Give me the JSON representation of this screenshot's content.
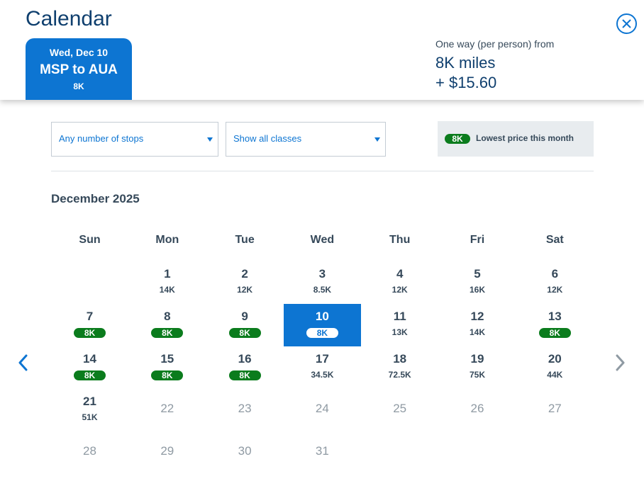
{
  "header": {
    "title": "Calendar",
    "close_icon": "close-circle-icon",
    "selected_tab": {
      "date": "Wed, Dec 10",
      "route": "MSP to AUA",
      "price": "8K"
    },
    "fare": {
      "label": "One way (per person) from",
      "miles": "8K miles",
      "cash": "+ $15.60"
    }
  },
  "filters": {
    "stops": {
      "value": "Any number of stops"
    },
    "classes": {
      "value": "Show all classes"
    }
  },
  "legend": {
    "pill": "8K",
    "text": "Lowest price this month"
  },
  "calendar": {
    "month": "December 2025",
    "weekdays": [
      "Sun",
      "Mon",
      "Tue",
      "Wed",
      "Thu",
      "Fri",
      "Sat"
    ],
    "weeks": [
      [
        null,
        {
          "day": "1",
          "price": "14K"
        },
        {
          "day": "2",
          "price": "12K"
        },
        {
          "day": "3",
          "price": "8.5K"
        },
        {
          "day": "4",
          "price": "12K"
        },
        {
          "day": "5",
          "price": "16K"
        },
        {
          "day": "6",
          "price": "12K"
        }
      ],
      [
        {
          "day": "7",
          "price": "8K",
          "lowest": true
        },
        {
          "day": "8",
          "price": "8K",
          "lowest": true
        },
        {
          "day": "9",
          "price": "8K",
          "lowest": true
        },
        {
          "day": "10",
          "price": "8K",
          "lowest": true,
          "selected": true
        },
        {
          "day": "11",
          "price": "13K"
        },
        {
          "day": "12",
          "price": "14K"
        },
        {
          "day": "13",
          "price": "8K",
          "lowest": true
        }
      ],
      [
        {
          "day": "14",
          "price": "8K",
          "lowest": true
        },
        {
          "day": "15",
          "price": "8K",
          "lowest": true
        },
        {
          "day": "16",
          "price": "8K",
          "lowest": true
        },
        {
          "day": "17",
          "price": "34.5K"
        },
        {
          "day": "18",
          "price": "72.5K"
        },
        {
          "day": "19",
          "price": "75K"
        },
        {
          "day": "20",
          "price": "44K"
        }
      ],
      [
        {
          "day": "21",
          "price": "51K"
        },
        {
          "day": "22",
          "disabled": true
        },
        {
          "day": "23",
          "disabled": true
        },
        {
          "day": "24",
          "disabled": true
        },
        {
          "day": "25",
          "disabled": true
        },
        {
          "day": "26",
          "disabled": true
        },
        {
          "day": "27",
          "disabled": true
        }
      ],
      [
        {
          "day": "28",
          "disabled": true
        },
        {
          "day": "29",
          "disabled": true
        },
        {
          "day": "30",
          "disabled": true
        },
        {
          "day": "31",
          "disabled": true
        },
        null,
        null,
        null
      ]
    ]
  },
  "nav": {
    "prev_icon": "chevron-left-icon",
    "next_icon": "chevron-right-icon"
  },
  "colors": {
    "brand_blue": "#0d75d2",
    "title_navy": "#0f3f6e",
    "lowest_green": "#0b7c1d",
    "legend_bg": "#e8ecef"
  }
}
